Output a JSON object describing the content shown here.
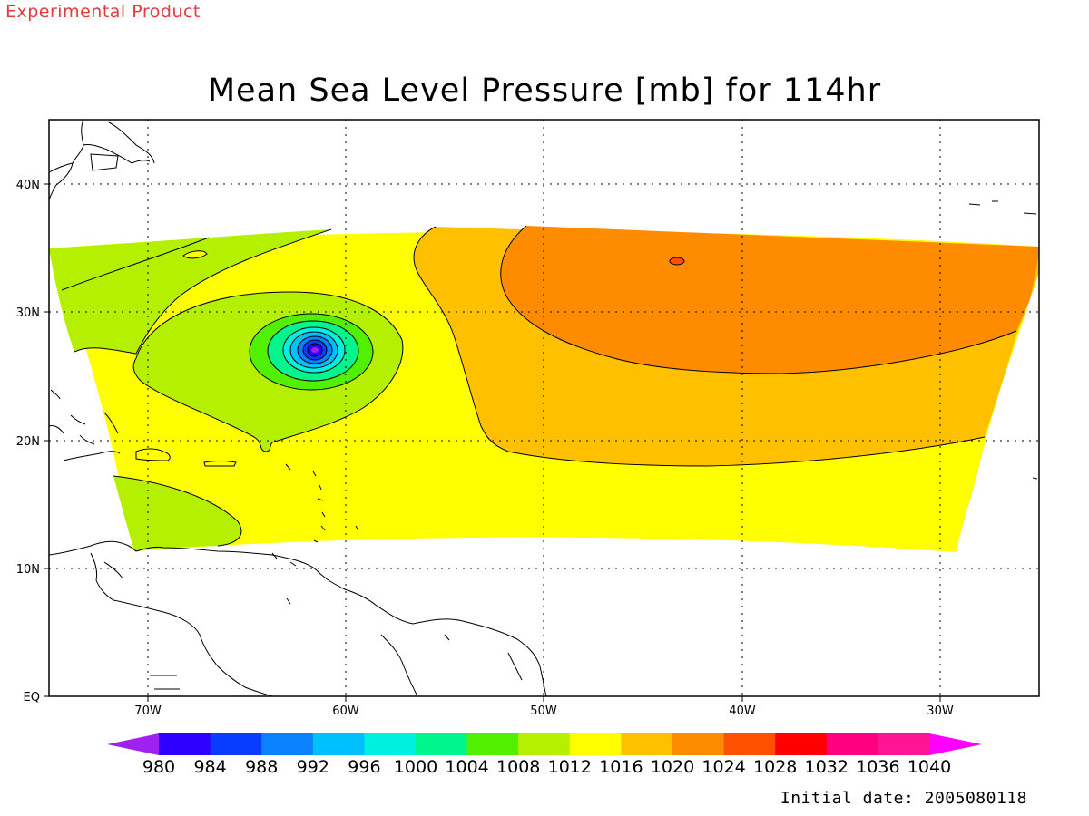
{
  "header": {
    "experimental_label": "Experimental Product",
    "title": "Mean Sea Level Pressure [mb] for 114hr"
  },
  "footer": {
    "initial_date": "Initial date: 2005080118"
  },
  "map": {
    "lat_labels": [
      "EQ",
      "10N",
      "20N",
      "30N",
      "40N"
    ],
    "lon_labels": [
      "70W",
      "60W",
      "50W",
      "40W",
      "30W"
    ]
  },
  "colorbar": {
    "labels": [
      "980",
      "984",
      "988",
      "992",
      "996",
      "1000",
      "1004",
      "1008",
      "1012",
      "1016",
      "1020",
      "1024",
      "1028",
      "1032",
      "1036",
      "1040"
    ],
    "colors": [
      "#a020f0",
      "#2e00ff",
      "#0a3cff",
      "#0a82ff",
      "#00bfff",
      "#00f0e0",
      "#00f58c",
      "#50f000",
      "#b4f000",
      "#ffff00",
      "#ffc000",
      "#ff8c00",
      "#ff5000",
      "#ff0000",
      "#ff0080",
      "#ff1493",
      "#ff00ff"
    ]
  },
  "fills": {
    "region_1016": "#ffff00",
    "region_1012": "#b4f000",
    "region_1020": "#ffc000",
    "region_1024": "#ff8c00",
    "core_1008": "#50f000",
    "core_1004": "#00f58c",
    "core_1000": "#00f0e0",
    "core_996": "#00bfff",
    "core_992": "#0a82ff",
    "core_988": "#0a3cff",
    "core_984": "#2e00ff",
    "core_980": "#a020f0"
  }
}
